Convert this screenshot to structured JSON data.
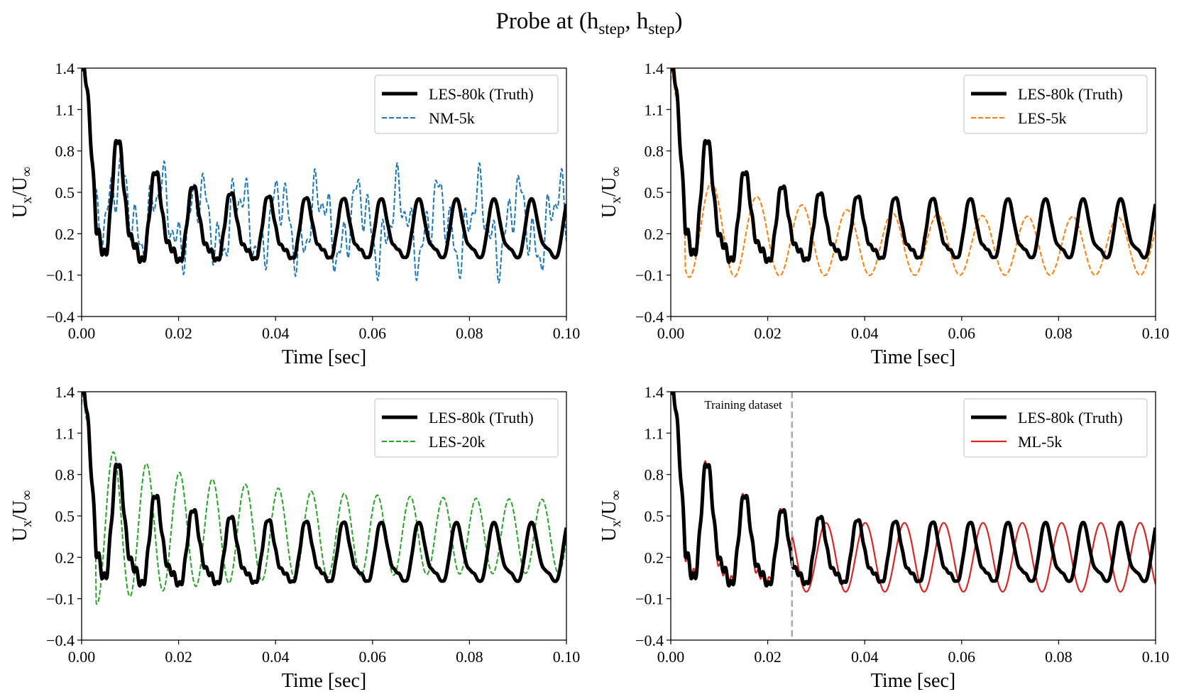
{
  "figure": {
    "title_main": "Probe at (h",
    "title_sub1": "step",
    "title_mid": ", h",
    "title_sub2": "step",
    "title_end": ")"
  },
  "chart_data": [
    {
      "type": "line",
      "panel": "top-left",
      "xlabel": "Time [sec]",
      "ylabel_base1": "U",
      "ylabel_sub1": "x",
      "ylabel_slash": "/U",
      "ylabel_sub2": "∞",
      "xlim": [
        0.0,
        0.1
      ],
      "ylim": [
        -0.4,
        1.4
      ],
      "xticks": [
        0.0,
        0.02,
        0.04,
        0.06,
        0.08,
        0.1
      ],
      "xtick_labels": [
        "0.00",
        "0.02",
        "0.04",
        "0.06",
        "0.08",
        "0.10"
      ],
      "yticks": [
        -0.4,
        -0.1,
        0.2,
        0.5,
        0.8,
        1.1,
        1.4
      ],
      "ytick_labels": [
        "−0.4",
        "−0.1",
        "0.2",
        "0.5",
        "0.8",
        "1.1",
        "1.4"
      ],
      "legend_position": "top-right",
      "series": [
        {
          "name": "LES-80k (Truth)",
          "color": "#000000",
          "style": "solid-thick",
          "model": "truth"
        },
        {
          "name": "NM-5k",
          "color": "#1f77b4",
          "style": "dashed",
          "model": "nm",
          "params": {
            "period": 0.0082,
            "amp": 0.22,
            "mean": 0.27,
            "phase": 0.15
          }
        }
      ]
    },
    {
      "type": "line",
      "panel": "top-right",
      "xlabel": "Time [sec]",
      "ylabel_base1": "U",
      "ylabel_sub1": "x",
      "ylabel_slash": "/U",
      "ylabel_sub2": "∞",
      "xlim": [
        0.0,
        0.1
      ],
      "ylim": [
        -0.4,
        1.4
      ],
      "xticks": [
        0.0,
        0.02,
        0.04,
        0.06,
        0.08,
        0.1
      ],
      "xtick_labels": [
        "0.00",
        "0.02",
        "0.04",
        "0.06",
        "0.08",
        "0.10"
      ],
      "yticks": [
        -0.4,
        -0.1,
        0.2,
        0.5,
        0.8,
        1.1,
        1.4
      ],
      "ytick_labels": [
        "−0.4",
        "−0.1",
        "0.2",
        "0.5",
        "0.8",
        "1.1",
        "1.4"
      ],
      "legend_position": "top-right",
      "series": [
        {
          "name": "LES-80k (Truth)",
          "color": "#000000",
          "style": "solid-thick",
          "model": "truth"
        },
        {
          "name": "LES-5k",
          "color": "#ff7f0e",
          "style": "dashed",
          "model": "osc",
          "params": {
            "period": 0.0093,
            "amp": 0.21,
            "mean": 0.11,
            "phase": 0.55,
            "amp_start": 0.42,
            "decay": 0.018,
            "mean_start": 0.3
          }
        }
      ]
    },
    {
      "type": "line",
      "panel": "bottom-left",
      "xlabel": "Time [sec]",
      "ylabel_base1": "U",
      "ylabel_sub1": "x",
      "ylabel_slash": "/U",
      "ylabel_sub2": "∞",
      "xlim": [
        0.0,
        0.1
      ],
      "ylim": [
        -0.4,
        1.4
      ],
      "xticks": [
        0.0,
        0.02,
        0.04,
        0.06,
        0.08,
        0.1
      ],
      "xtick_labels": [
        "0.00",
        "0.02",
        "0.04",
        "0.06",
        "0.08",
        "0.10"
      ],
      "yticks": [
        -0.4,
        -0.1,
        0.2,
        0.5,
        0.8,
        1.1,
        1.4
      ],
      "ytick_labels": [
        "−0.4",
        "−0.1",
        "0.2",
        "0.5",
        "0.8",
        "1.1",
        "1.4"
      ],
      "legend_position": "top-right",
      "series": [
        {
          "name": "LES-80k (Truth)",
          "color": "#000000",
          "style": "solid-thick",
          "model": "truth"
        },
        {
          "name": "LES-20k",
          "color": "#2ca02c",
          "style": "dashed",
          "model": "osc",
          "params": {
            "period": 0.0068,
            "amp": 0.26,
            "mean": 0.35,
            "phase": 0.2,
            "amp_start": 0.62,
            "decay": 0.025,
            "mean_start": 0.45
          }
        }
      ]
    },
    {
      "type": "line",
      "panel": "bottom-right",
      "xlabel": "Time [sec]",
      "ylabel_base1": "U",
      "ylabel_sub1": "x",
      "ylabel_slash": "/U",
      "ylabel_sub2": "∞",
      "xlim": [
        0.0,
        0.1
      ],
      "ylim": [
        -0.4,
        1.4
      ],
      "xticks": [
        0.0,
        0.02,
        0.04,
        0.06,
        0.08,
        0.1
      ],
      "xtick_labels": [
        "0.00",
        "0.02",
        "0.04",
        "0.06",
        "0.08",
        "0.10"
      ],
      "yticks": [
        -0.4,
        -0.1,
        0.2,
        0.5,
        0.8,
        1.1,
        1.4
      ],
      "ytick_labels": [
        "−0.4",
        "−0.1",
        "0.2",
        "0.5",
        "0.8",
        "1.1",
        "1.4"
      ],
      "legend_position": "top-right",
      "vline": {
        "x": 0.025,
        "label": "Training dataset",
        "color": "#aaaaaa"
      },
      "series": [
        {
          "name": "LES-80k (Truth)",
          "color": "#000000",
          "style": "solid-thick",
          "model": "truth"
        },
        {
          "name": "ML-5k",
          "color": "#d62728",
          "style": "solid-thin",
          "model": "ml",
          "params": {
            "period": 0.0081,
            "amp": 0.25,
            "mean": 0.2,
            "phase": 0.3
          }
        }
      ]
    }
  ]
}
